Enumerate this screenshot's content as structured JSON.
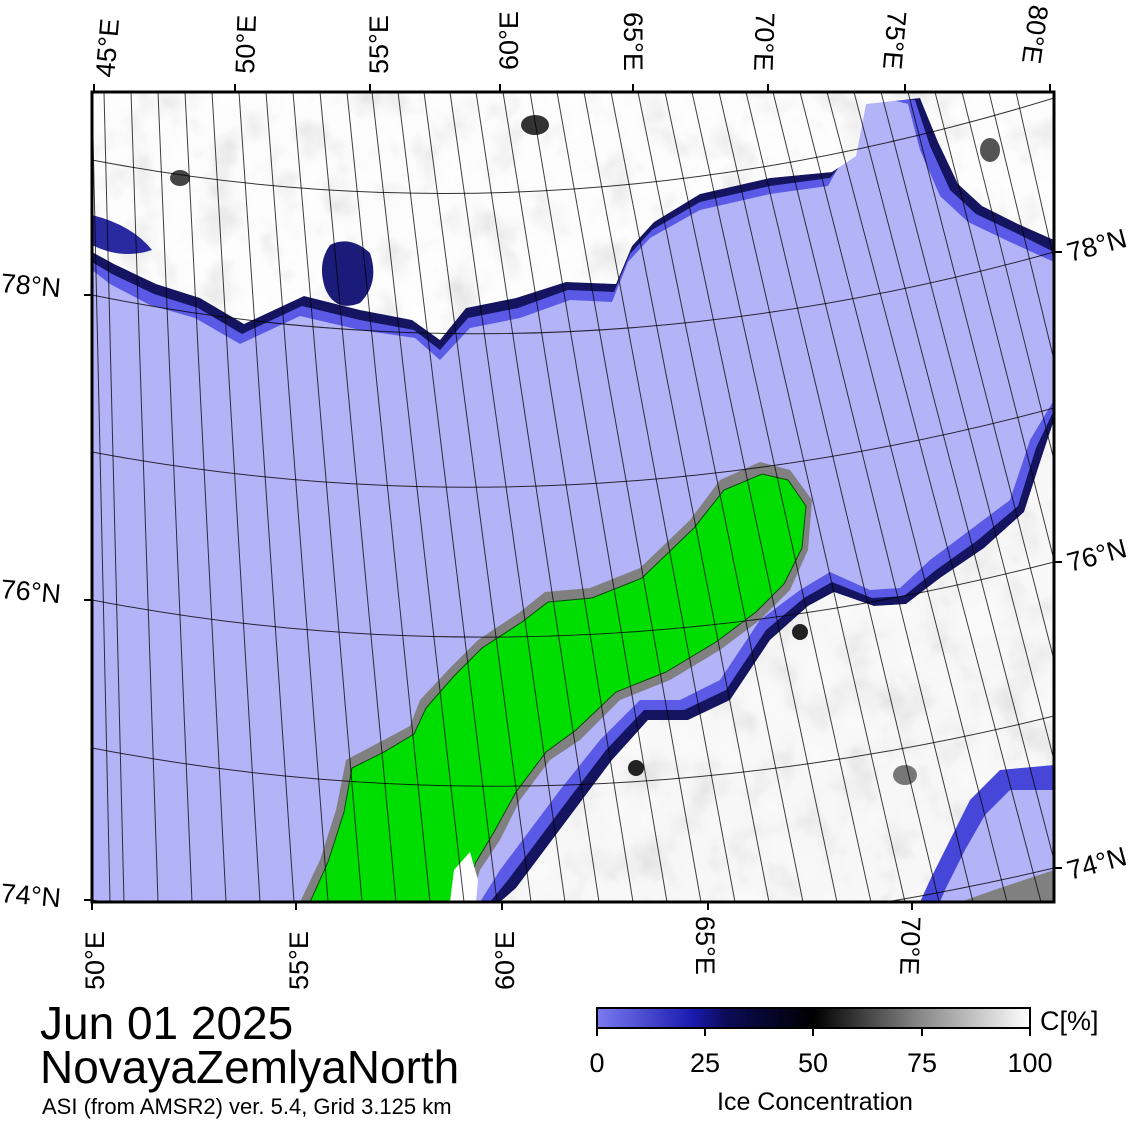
{
  "date": "Jun 01 2025",
  "region": "NovayaZemlyaNorth",
  "product": "ASI (from AMSR2) ver. 5.4,  Grid 3.125 km",
  "top_lon_labels": [
    "45°E",
    "50°E",
    "55°E",
    "60°E",
    "65°E",
    "70°E",
    "75°E",
    "80°E"
  ],
  "bottom_lon_labels": [
    "50°E",
    "55°E",
    "60°E",
    "65°E",
    "70°E"
  ],
  "left_lat_labels": [
    "78°N",
    "76°N",
    "74°N"
  ],
  "right_lat_labels": [
    "78°N",
    "76°N",
    "74°N"
  ],
  "colorbar": {
    "ticks": [
      "0",
      "25",
      "50",
      "75",
      "100"
    ],
    "unit": "C[%]",
    "label": "Ice Concentration"
  },
  "colors": {
    "open_water": "#b3b3f7",
    "land": "#00dd00",
    "land_border": "#808080",
    "ice_high": "#ffffff",
    "ice_mid": "#000000",
    "ice_low": "#5050e6"
  }
}
